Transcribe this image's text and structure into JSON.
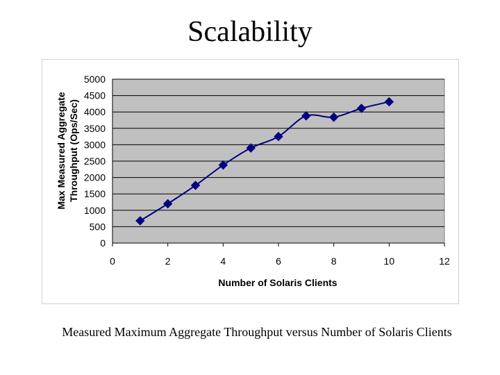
{
  "slide": {
    "title": "Scalability",
    "caption": "Measured Maximum Aggregate Throughput versus Number of Solaris Clients"
  },
  "chart_data": {
    "type": "line",
    "title": "",
    "xlabel": "Number of Solaris Clients",
    "ylabel_lines": [
      "Max Measured Aggregate",
      "Throughput (Ops/Sec)"
    ],
    "xlim": [
      0,
      12
    ],
    "ylim": [
      0,
      5000
    ],
    "x_ticks": [
      "0",
      "2",
      "4",
      "6",
      "8",
      "10",
      "12"
    ],
    "y_ticks": [
      "0",
      "500",
      "1000",
      "1500",
      "2000",
      "2500",
      "3000",
      "3500",
      "4000",
      "4500",
      "5000"
    ],
    "grid": "horizontal",
    "legend": "none",
    "series": [
      {
        "x": [
          1,
          2,
          3,
          4,
          5,
          6,
          7,
          8,
          9,
          10
        ],
        "y": [
          680,
          1200,
          1760,
          2380,
          2900,
          3250,
          3880,
          3840,
          4110,
          4310
        ]
      }
    ],
    "colors": {
      "plot_bg": "#c0c0c0",
      "line": "#000080",
      "marker": "#000080",
      "grid": "#000000"
    }
  }
}
